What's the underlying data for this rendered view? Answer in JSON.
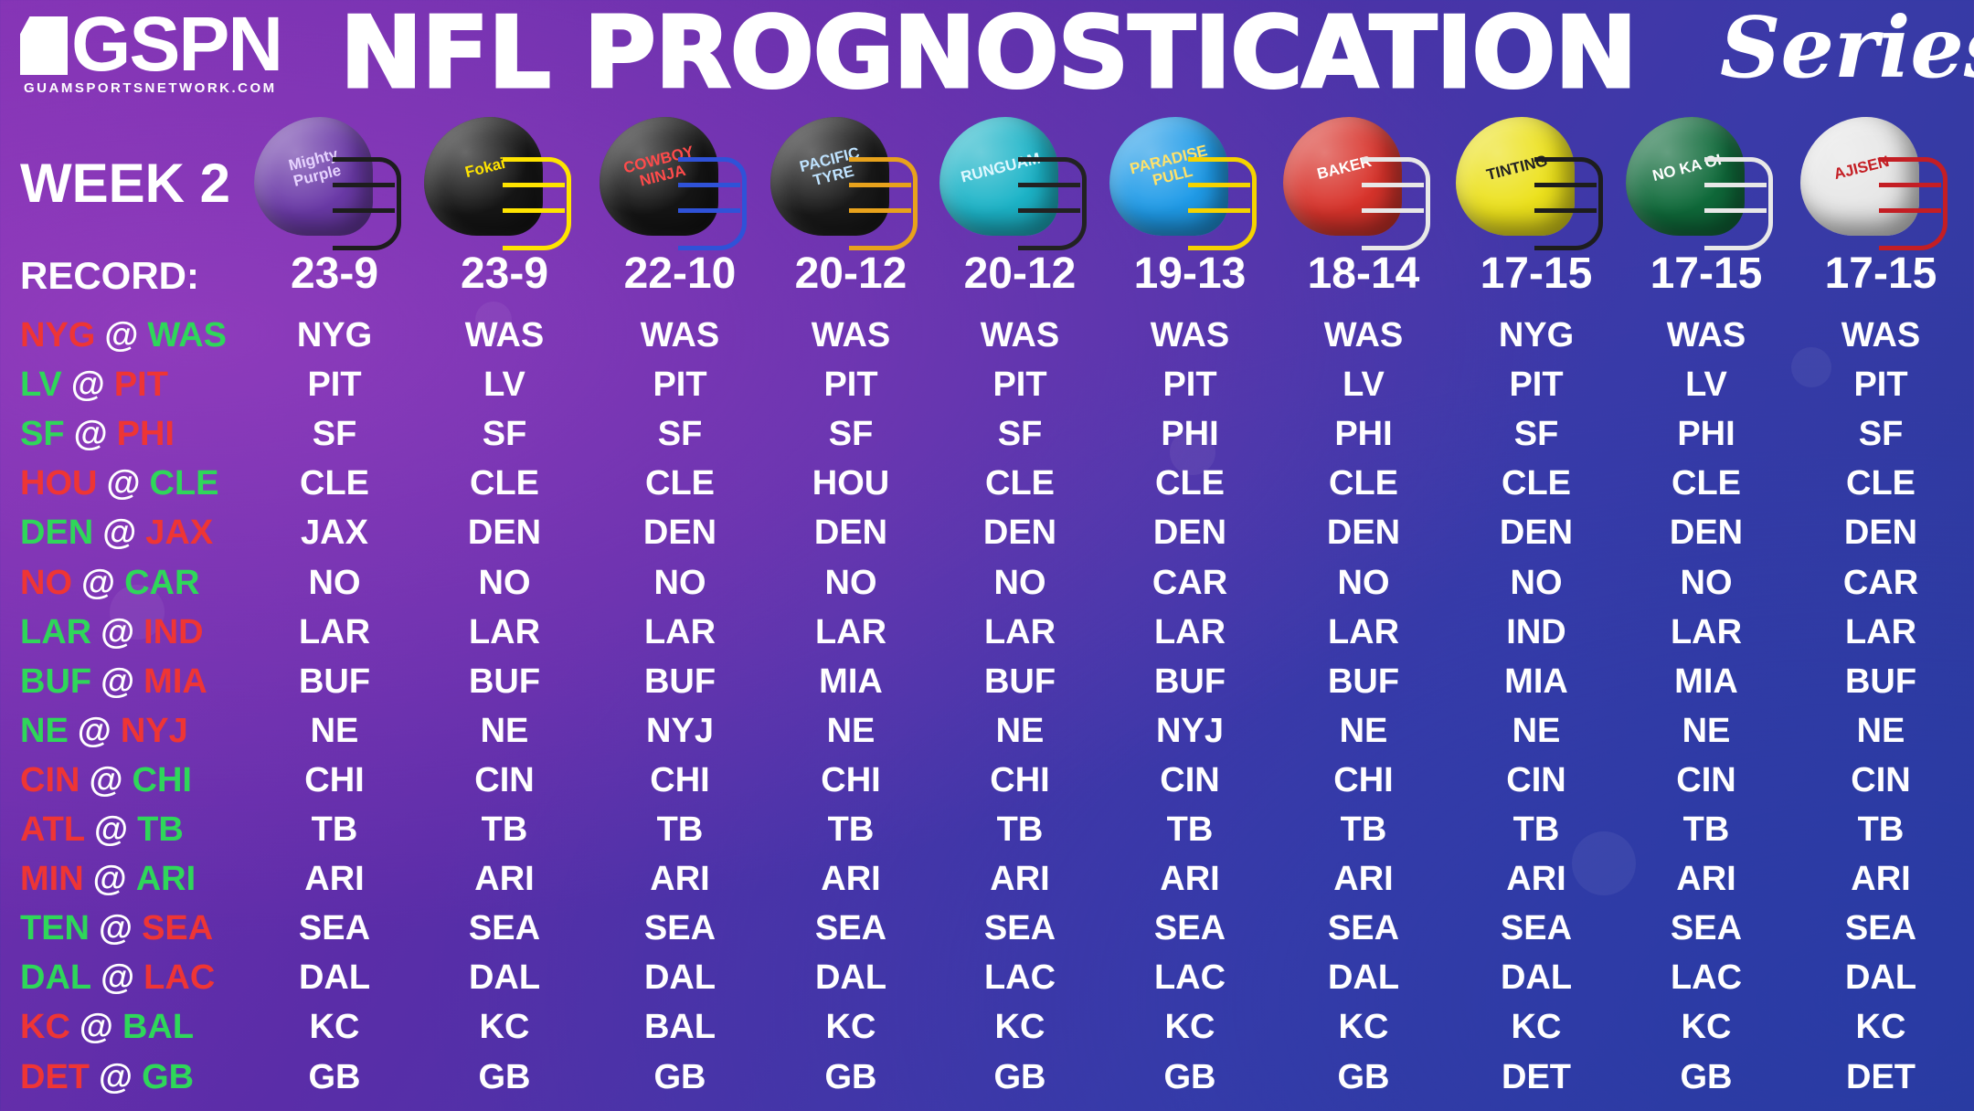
{
  "header": {
    "logo_text": "GSPN",
    "logo_url": "GUAMSPORTSNETWORK.COM",
    "title": "NFL PROGNOSTICATION",
    "series": "Series",
    "week": "WEEK 2",
    "record_label": "RECORD:"
  },
  "colors": {
    "winner": "#2fd65a",
    "loser": "#ee3535"
  },
  "helmets": [
    {
      "icon": "helmet-icon",
      "shell": "#6b3aa8",
      "mask": "#1d1d1d",
      "decal": "Mighty Purple",
      "decal_color": "#e6d3ff"
    },
    {
      "icon": "helmet-icon",
      "shell": "#161616",
      "mask": "#ffe400",
      "decal": "Fokai",
      "decal_color": "#ffe400"
    },
    {
      "icon": "helmet-icon",
      "shell": "#151515",
      "mask": "#2f52d8",
      "decal": "COWBOY NINJA",
      "decal_color": "#ff4b4b"
    },
    {
      "icon": "helmet-icon",
      "shell": "#1a1a1a",
      "mask": "#e8a21c",
      "decal": "PACIFIC TYRE",
      "decal_color": "#bfe3ff"
    },
    {
      "icon": "helmet-icon",
      "shell": "#1cb4c8",
      "mask": "#222222",
      "decal": "RUNGUAM",
      "decal_color": "#dff8ff"
    },
    {
      "icon": "helmet-icon",
      "shell": "#1f9be8",
      "mask": "#f5d300",
      "decal": "PARADISE PULL",
      "decal_color": "#ffe26a"
    },
    {
      "icon": "helmet-icon",
      "shell": "#d8332b",
      "mask": "#e8e8e8",
      "decal": "BAKER",
      "decal_color": "#ffffff"
    },
    {
      "icon": "helmet-icon",
      "shell": "#ece11b",
      "mask": "#1d1d1d",
      "decal": "TINTING",
      "decal_color": "#222222"
    },
    {
      "icon": "helmet-icon",
      "shell": "#0f6a3a",
      "mask": "#e8e8e8",
      "decal": "NO KA OI",
      "decal_color": "#ffffff"
    },
    {
      "icon": "helmet-icon",
      "shell": "#e6e6e6",
      "mask": "#c41e24",
      "decal": "AJISEN",
      "decal_color": "#c41e24"
    }
  ],
  "records": [
    "23-9",
    "23-9",
    "22-10",
    "20-12",
    "20-12",
    "19-13",
    "18-14",
    "17-15",
    "17-15",
    "17-15"
  ],
  "at_symbol": "@",
  "games": [
    {
      "away": "NYG",
      "home": "WAS",
      "winner": "home",
      "picks": [
        "NYG",
        "WAS",
        "WAS",
        "WAS",
        "WAS",
        "WAS",
        "WAS",
        "NYG",
        "WAS",
        "WAS"
      ]
    },
    {
      "away": "LV",
      "home": "PIT",
      "winner": "away",
      "picks": [
        "PIT",
        "LV",
        "PIT",
        "PIT",
        "PIT",
        "PIT",
        "LV",
        "PIT",
        "LV",
        "PIT"
      ]
    },
    {
      "away": "SF",
      "home": "PHI",
      "winner": "away",
      "picks": [
        "SF",
        "SF",
        "SF",
        "SF",
        "SF",
        "PHI",
        "PHI",
        "SF",
        "PHI",
        "SF"
      ]
    },
    {
      "away": "HOU",
      "home": "CLE",
      "winner": "home",
      "picks": [
        "CLE",
        "CLE",
        "CLE",
        "HOU",
        "CLE",
        "CLE",
        "CLE",
        "CLE",
        "CLE",
        "CLE"
      ]
    },
    {
      "away": "DEN",
      "home": "JAX",
      "winner": "away",
      "picks": [
        "JAX",
        "DEN",
        "DEN",
        "DEN",
        "DEN",
        "DEN",
        "DEN",
        "DEN",
        "DEN",
        "DEN"
      ]
    },
    {
      "away": "NO",
      "home": "CAR",
      "winner": "home",
      "picks": [
        "NO",
        "NO",
        "NO",
        "NO",
        "NO",
        "CAR",
        "NO",
        "NO",
        "NO",
        "CAR"
      ]
    },
    {
      "away": "LAR",
      "home": "IND",
      "winner": "away",
      "picks": [
        "LAR",
        "LAR",
        "LAR",
        "LAR",
        "LAR",
        "LAR",
        "LAR",
        "IND",
        "LAR",
        "LAR"
      ]
    },
    {
      "away": "BUF",
      "home": "MIA",
      "winner": "away",
      "picks": [
        "BUF",
        "BUF",
        "BUF",
        "MIA",
        "BUF",
        "BUF",
        "BUF",
        "MIA",
        "MIA",
        "BUF"
      ]
    },
    {
      "away": "NE",
      "home": "NYJ",
      "winner": "away",
      "picks": [
        "NE",
        "NE",
        "NYJ",
        "NE",
        "NE",
        "NYJ",
        "NE",
        "NE",
        "NE",
        "NE"
      ]
    },
    {
      "away": "CIN",
      "home": "CHI",
      "winner": "home",
      "picks": [
        "CHI",
        "CIN",
        "CHI",
        "CHI",
        "CHI",
        "CIN",
        "CHI",
        "CIN",
        "CIN",
        "CIN"
      ]
    },
    {
      "away": "ATL",
      "home": "TB",
      "winner": "home",
      "picks": [
        "TB",
        "TB",
        "TB",
        "TB",
        "TB",
        "TB",
        "TB",
        "TB",
        "TB",
        "TB"
      ]
    },
    {
      "away": "MIN",
      "home": "ARI",
      "winner": "home",
      "picks": [
        "ARI",
        "ARI",
        "ARI",
        "ARI",
        "ARI",
        "ARI",
        "ARI",
        "ARI",
        "ARI",
        "ARI"
      ]
    },
    {
      "away": "TEN",
      "home": "SEA",
      "winner": "away",
      "picks": [
        "SEA",
        "SEA",
        "SEA",
        "SEA",
        "SEA",
        "SEA",
        "SEA",
        "SEA",
        "SEA",
        "SEA"
      ]
    },
    {
      "away": "DAL",
      "home": "LAC",
      "winner": "away",
      "picks": [
        "DAL",
        "DAL",
        "DAL",
        "DAL",
        "LAC",
        "LAC",
        "DAL",
        "DAL",
        "LAC",
        "DAL"
      ]
    },
    {
      "away": "KC",
      "home": "BAL",
      "winner": "home",
      "picks": [
        "KC",
        "KC",
        "BAL",
        "KC",
        "KC",
        "KC",
        "KC",
        "KC",
        "KC",
        "KC"
      ]
    },
    {
      "away": "DET",
      "home": "GB",
      "winner": "home",
      "picks": [
        "GB",
        "GB",
        "GB",
        "GB",
        "GB",
        "GB",
        "GB",
        "DET",
        "GB",
        "DET"
      ]
    }
  ]
}
